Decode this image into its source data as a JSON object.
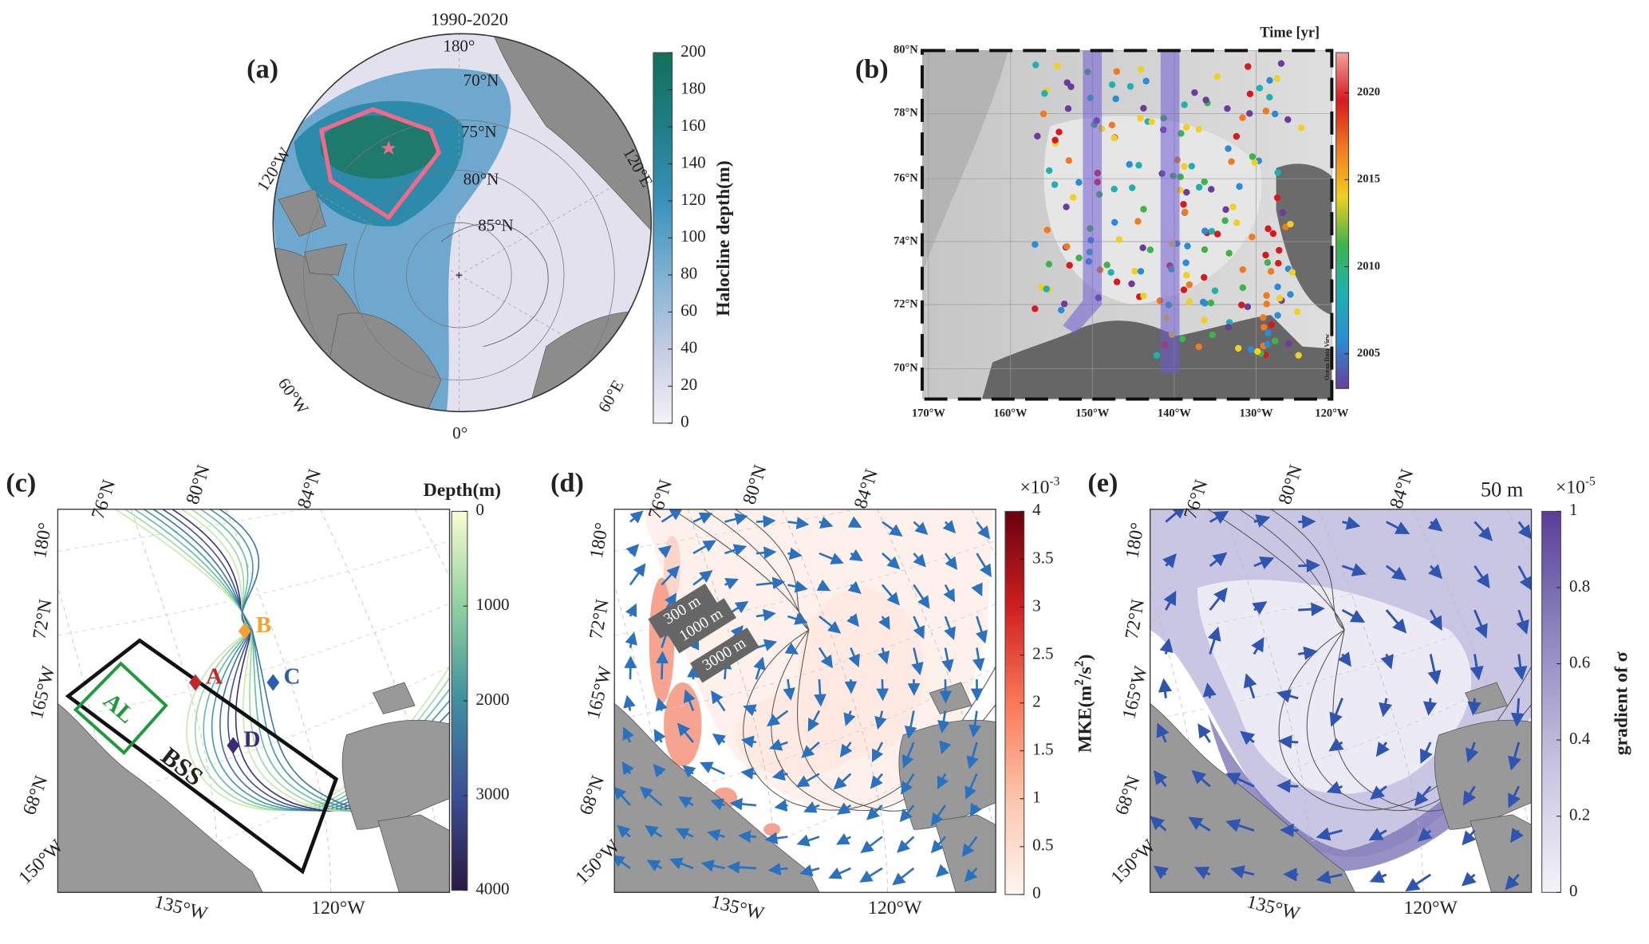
{
  "panels": [
    {
      "label": "(a)",
      "title": "1990-2020",
      "map_labels": [
        "180°",
        "70°N",
        "75°N",
        "80°N",
        "85°N",
        "120°W",
        "120°E",
        "60°W",
        "60°E",
        "0°"
      ],
      "colorbar": {
        "label": "Halocline depth(m)",
        "lim": [
          0,
          200
        ],
        "ticks": [
          0,
          20,
          40,
          60,
          80,
          100,
          120,
          140,
          160,
          180,
          200
        ],
        "colors": [
          "#f4f2f8",
          "#c4cbe2",
          "#7fb1d3",
          "#3a91bb",
          "#1f7d86",
          "#12705a"
        ]
      }
    },
    {
      "label": "(b)",
      "lat_labels": [
        "80°N",
        "78°N",
        "76°N",
        "74°N",
        "72°N",
        "70°N"
      ],
      "lon_labels": [
        "170°W",
        "160°W",
        "150°W",
        "140°W",
        "130°W",
        "120°W"
      ],
      "credit": "Ocean Data View",
      "colorbar": {
        "label": "Time [yr]",
        "lim": [
          2003,
          2022.3
        ],
        "ticks": [
          2005,
          2010,
          2015,
          2020
        ],
        "colors": [
          "#6a3d9a",
          "#2b8cd6",
          "#20b0b0",
          "#3cb44b",
          "#f0d020",
          "#f07a20",
          "#d7191c",
          "#f6a0a0"
        ]
      }
    },
    {
      "label": "(c)",
      "grid_labels": [
        "76°N",
        "80°N",
        "84°N",
        "180°",
        "72°N",
        "165°W",
        "68°N",
        "150°W",
        "135°W",
        "120°W"
      ],
      "point_labels": [
        "A",
        "B",
        "C",
        "D"
      ],
      "region_labels": [
        "AL",
        "BSS"
      ],
      "colorbar": {
        "label": "Depth(m)",
        "lim": [
          0,
          4000
        ],
        "reversed": true,
        "ticks": [
          0,
          1000,
          2000,
          3000,
          4000
        ],
        "colors": [
          "#fbfbd0",
          "#8fd1a0",
          "#3f8fa0",
          "#3c4e94",
          "#2a1a40"
        ]
      }
    },
    {
      "label": "(d)",
      "grid_labels": [
        "76°N",
        "80°N",
        "84°N",
        "180°",
        "72°N",
        "165°W",
        "68°N",
        "150°W",
        "135°W",
        "120°W"
      ],
      "contour_labels": [
        "300 m",
        "1000 m",
        "3000 m"
      ],
      "colorbar": {
        "label": [
          "MKE(m",
          "2",
          "/s",
          "2",
          ")"
        ],
        "exponent": [
          "×10",
          "-3"
        ],
        "lim": [
          0,
          4
        ],
        "ticks": [
          0,
          0.5,
          1,
          1.5,
          2,
          2.5,
          3,
          3.5,
          4
        ],
        "colors": [
          "#fff5f0",
          "#fcc5ac",
          "#fb7858",
          "#cf1f21",
          "#6a000d"
        ]
      }
    },
    {
      "label": "(e)",
      "grid_labels": [
        "76°N",
        "80°N",
        "84°N",
        "180°",
        "72°N",
        "165°W",
        "68°N",
        "150°W",
        "135°W",
        "120°W"
      ],
      "depth_label": "50 m",
      "colorbar": {
        "label": "gradient of σ",
        "exponent": [
          "×10",
          "-5"
        ],
        "lim": [
          0,
          1
        ],
        "ticks": [
          0,
          0.2,
          0.4,
          0.6,
          0.8,
          1
        ],
        "colors": [
          "#f4f2f8",
          "#c6c4e0",
          "#8e89c0",
          "#5a3d99"
        ]
      }
    }
  ]
}
